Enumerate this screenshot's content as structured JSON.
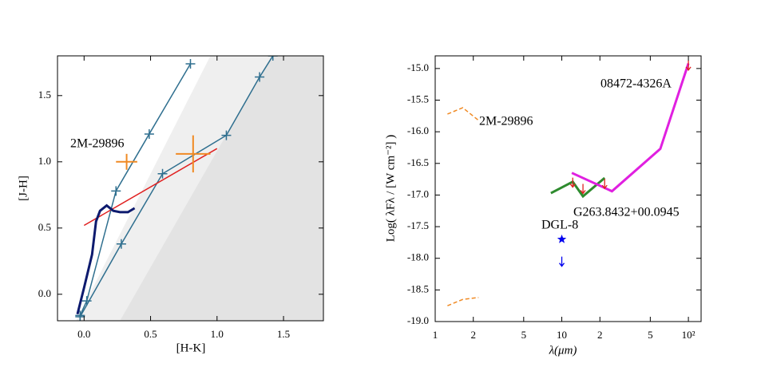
{
  "chart_data": [
    {
      "type": "line",
      "xlabel": "[H-K]",
      "ylabel": "[J-H]",
      "xlim": [
        -0.2,
        1.8
      ],
      "ylim": [
        -0.2,
        1.8
      ],
      "xticks": [
        {
          "value": 0,
          "label": "0.0"
        },
        0.5,
        {
          "value": 1,
          "label": "1.0"
        },
        1.5
      ],
      "yticks": [
        {
          "value": 0,
          "label": "0.0"
        },
        0.5,
        {
          "value": 1,
          "label": "1.0"
        },
        1.5
      ],
      "regions": [
        {
          "color": "#efefef",
          "x": [
            -0.06,
            0.95,
            1.8,
            1.8
          ],
          "values": [
            -0.2,
            1.8,
            1.8,
            -0.2
          ]
        },
        {
          "color": "#e3e3e3",
          "x": [
            0.27,
            1.41,
            1.8,
            1.8
          ],
          "values": [
            -0.2,
            1.8,
            1.8,
            -0.2
          ]
        }
      ],
      "series": [
        {
          "color": "#2f6f8f",
          "marker": "plus",
          "x": [
            -0.03,
            0.02,
            0.24,
            0.49,
            0.8
          ],
          "values": [
            -0.16,
            -0.05,
            0.78,
            1.21,
            1.74
          ]
        },
        {
          "color": "#2f6f8f",
          "marker": "plus",
          "x": [
            -0.03,
            0.28,
            0.59,
            1.07,
            1.32,
            1.42
          ],
          "values": [
            -0.17,
            0.38,
            0.91,
            1.2,
            1.64,
            1.8
          ]
        },
        {
          "color": "#e02020",
          "x": [
            0.0,
            1.0
          ],
          "values": [
            0.52,
            1.1
          ]
        },
        {
          "color": "#0d1a6e",
          "width": 3,
          "x": [
            -0.05,
            0.0,
            0.06,
            0.09,
            0.12,
            0.17,
            0.22,
            0.27,
            0.33,
            0.38
          ],
          "values": [
            -0.15,
            0.05,
            0.3,
            0.55,
            0.63,
            0.67,
            0.63,
            0.62,
            0.62,
            0.65
          ]
        }
      ],
      "errorbars": [
        {
          "color": "#f08a24",
          "x": [
            0.32,
            0.82
          ],
          "values": [
            1.0,
            1.06
          ],
          "xerr": [
            0.08,
            0.13
          ],
          "yerr": [
            0.06,
            0.14
          ]
        }
      ],
      "annotations": [
        "2M-29896"
      ]
    },
    {
      "type": "line",
      "xlabel": "λ(μm)",
      "ylabel": "Log( λFλ / [W cm⁻²] )",
      "xscale": "log",
      "xlim": [
        1,
        126
      ],
      "ylim": [
        -19.0,
        -14.8
      ],
      "xticks": [
        1,
        2,
        5,
        10,
        {
          "value": 20,
          "label": "2"
        },
        {
          "value": 50,
          "label": "5"
        },
        {
          "value": 100,
          "label": "10²"
        }
      ],
      "yticks": [
        {
          "value": -15,
          "label": "-15.0"
        },
        -15.5,
        {
          "value": -16,
          "label": "-16.0"
        },
        -16.5,
        {
          "value": -17,
          "label": "-17.0"
        },
        -17.5,
        {
          "value": -18,
          "label": "-18.0"
        },
        -18.5,
        {
          "value": -19,
          "label": "-19.0"
        }
      ],
      "series": [
        {
          "color": "#f08a24",
          "dash": true,
          "x": [
            1.25,
            1.65,
            2.2
          ],
          "values": [
            -15.72,
            -15.62,
            -15.82
          ]
        },
        {
          "color": "#f08a24",
          "dash": true,
          "x": [
            1.25,
            1.65,
            2.2
          ],
          "values": [
            -18.75,
            -18.65,
            -18.62
          ]
        },
        {
          "color": "#2e8b2e",
          "width": 3,
          "x": [
            8.2,
            12.2,
            14.7,
            21.8
          ],
          "values": [
            -16.97,
            -16.79,
            -17.02,
            -16.73
          ]
        },
        {
          "color": "#e020e0",
          "width": 3,
          "x": [
            12,
            24.9,
            60,
            100
          ],
          "values": [
            -16.65,
            -16.94,
            -16.27,
            -14.92
          ]
        }
      ],
      "upper_limits": [
        {
          "color": "#e02020",
          "x": [
            12.2,
            14.7,
            21.8,
            100
          ],
          "values": [
            -16.8,
            -16.9,
            -16.82,
            -14.95
          ]
        },
        {
          "color": "#0000ee",
          "x": [
            10
          ],
          "values": [
            -18.05
          ]
        }
      ],
      "points": [
        {
          "color": "#0000ee",
          "marker": "star",
          "x": [
            10
          ],
          "values": [
            -17.7
          ]
        }
      ],
      "annotations": [
        "08472-4326A",
        "2M-29896",
        "G263.8432+00.0945",
        "DGL-8"
      ]
    }
  ]
}
